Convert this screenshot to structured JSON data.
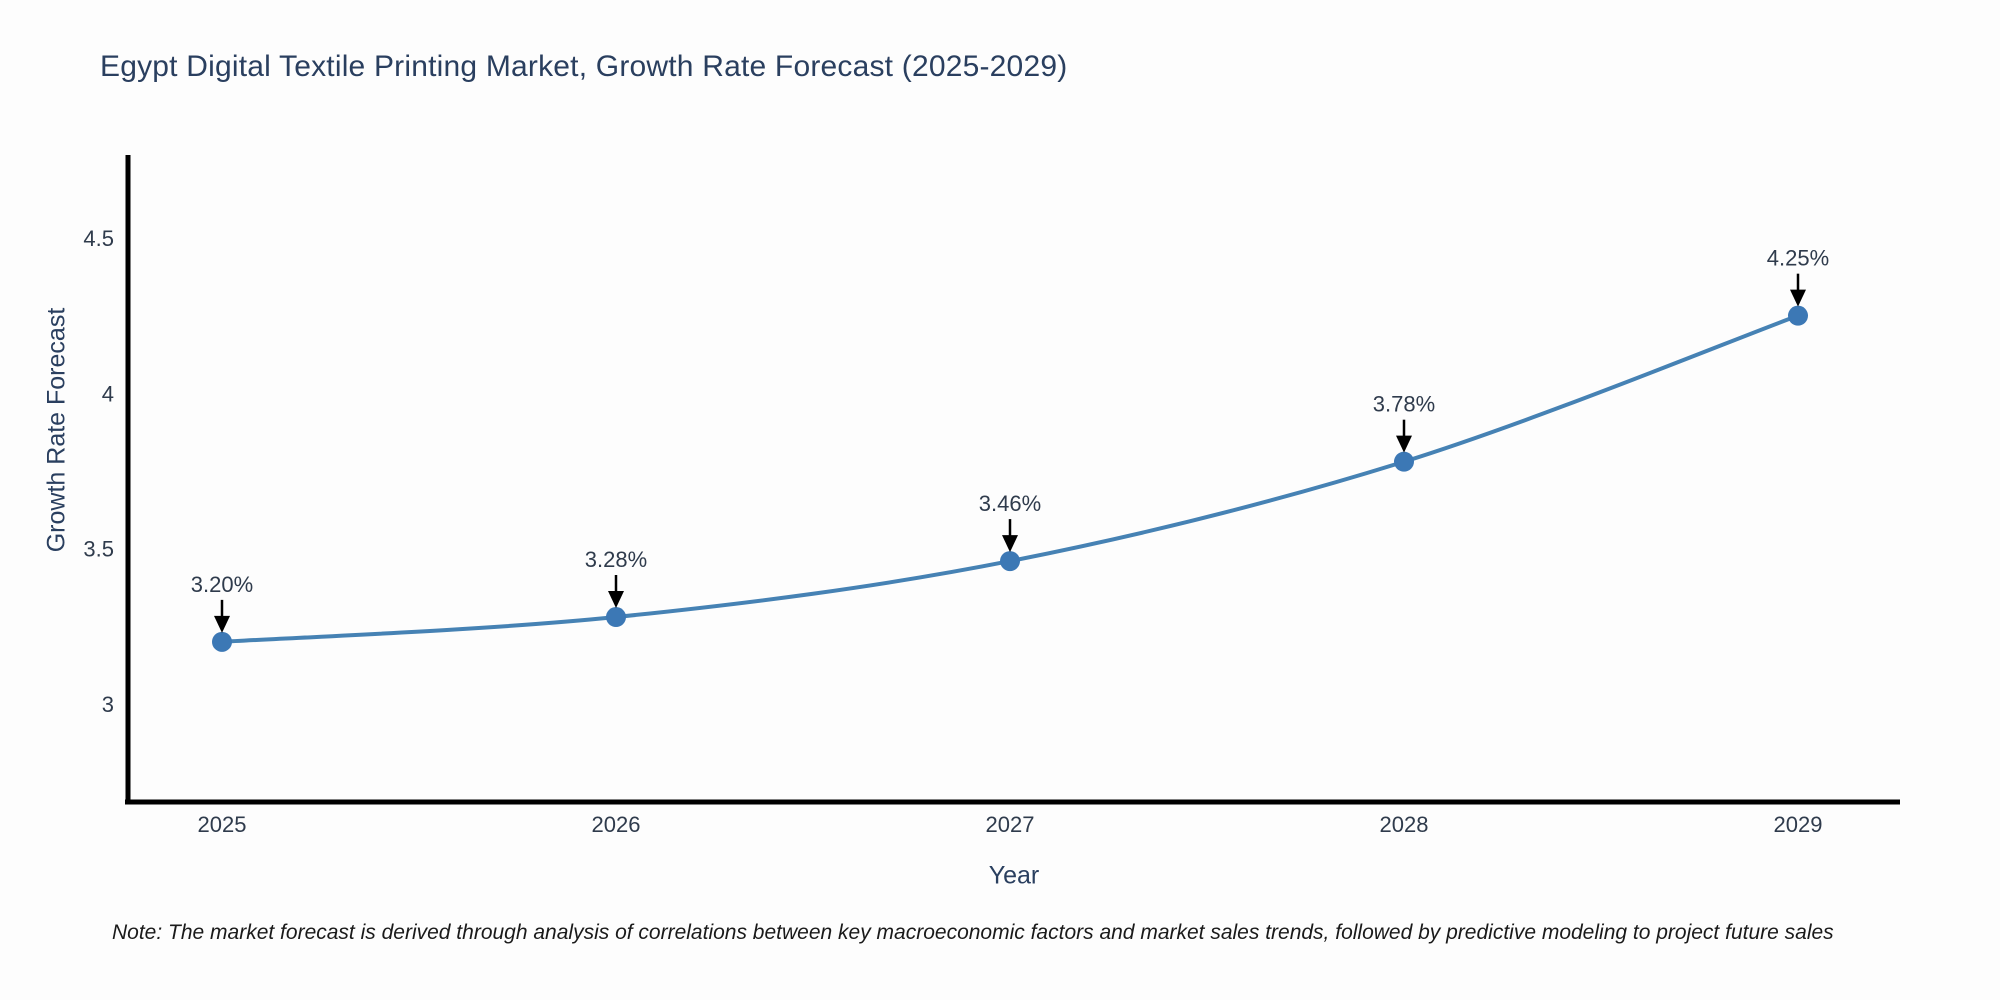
{
  "header": {
    "title": "Egypt Digital Textile Printing Market, Growth Rate Forecast (2025-2029)"
  },
  "chart_data": {
    "type": "line",
    "title": "Egypt Digital Textile Printing Market, Growth Rate Forecast (2025-2029)",
    "categories": [
      "2025",
      "2026",
      "2027",
      "2028",
      "2029"
    ],
    "series": [
      {
        "name": "Growth Rate Forecast",
        "values": [
          3.2,
          3.28,
          3.46,
          3.78,
          4.25
        ]
      }
    ],
    "point_labels": [
      "3.20%",
      "3.28%",
      "3.46%",
      "3.78%",
      "4.25%"
    ],
    "xlabel": "Year",
    "ylabel": "Growth Rate Forecast",
    "yticks": [
      3,
      3.5,
      4,
      4.5
    ],
    "ytick_labels": [
      "3",
      "3.5",
      "4",
      "4.5"
    ],
    "ylim": [
      2.69,
      4.78
    ],
    "grid": false,
    "legend": "none",
    "line_color": "#4682b4",
    "marker_color": "#3c78b5",
    "axis_color": "#000000",
    "tick_color": "#2f3b4c",
    "annotation_text_color": "#2f3b4c",
    "annotation_arrow_color": "#000000"
  },
  "note": {
    "text": "Note: The market forecast is derived through analysis of correlations between key macroeconomic factors and market sales trends, followed by predictive modeling to project future sales"
  }
}
